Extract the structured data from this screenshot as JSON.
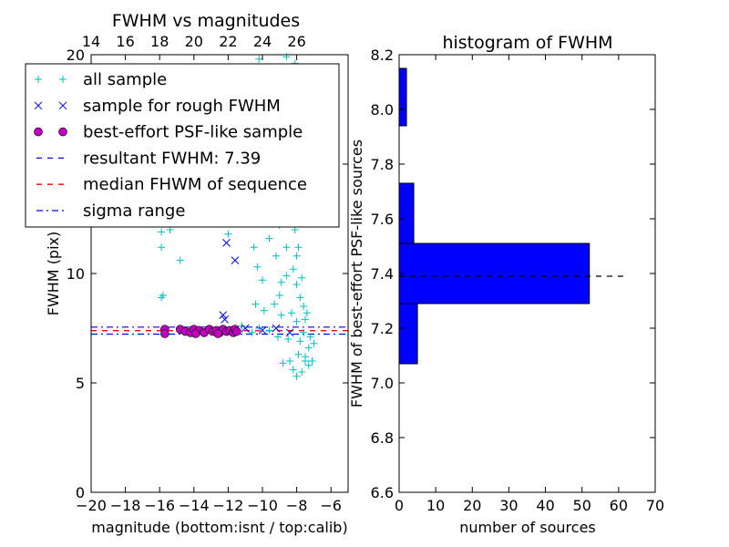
{
  "chart_data": [
    {
      "type": "scatter",
      "title": "FWHM vs magnitudes",
      "xlabel": "magnitude (bottom:isnt / top:calib)",
      "ylabel": "FWHM (pix)",
      "xlim": [
        -20,
        -5
      ],
      "ylim": [
        0,
        20
      ],
      "x_ticks": [
        -20,
        -18,
        -16,
        -14,
        -12,
        -10,
        -8,
        -6
      ],
      "x_tick_labels": [
        "−20",
        "−18",
        "−16",
        "−14",
        "−12",
        "−10",
        "−8",
        "−6"
      ],
      "y_ticks": [
        0,
        5,
        10,
        15,
        20
      ],
      "y_tick_labels": [
        "0",
        "5",
        "10",
        "15",
        "20"
      ],
      "top_axis": {
        "ticks": [
          14,
          16,
          18,
          20,
          22,
          24,
          26
        ],
        "tick_labels": [
          "14",
          "16",
          "18",
          "20",
          "22",
          "24",
          "26"
        ],
        "offset": 34
      },
      "grid": false,
      "legend_position": "top-left",
      "legend": [
        {
          "label": "all sample",
          "marker": "plus",
          "color": "#00bfbf"
        },
        {
          "label": "sample for rough FWHM",
          "marker": "x",
          "color": "#0000ff"
        },
        {
          "label": "best-effort PSF-like sample",
          "marker": "circle",
          "color": "#bf00bf"
        },
        {
          "label": "resultant FWHM: 7.39",
          "line": "dashed",
          "color": "#0000ff"
        },
        {
          "label": "median FHWM of sequence",
          "line": "dashed",
          "color": "#ff0000"
        },
        {
          "label": "sigma range",
          "line": "dashdot",
          "color": "#0000ff"
        }
      ],
      "series": [
        {
          "name": "all sample",
          "marker": "plus",
          "color": "#00bfbf",
          "points": [
            [
              -15.9,
              11.9
            ],
            [
              -15.9,
              11.2
            ],
            [
              -15.8,
              9.0
            ],
            [
              -15.9,
              8.9
            ],
            [
              -15.4,
              12.0
            ],
            [
              -14.8,
              10.6
            ],
            [
              -13.3,
              12.6
            ],
            [
              -12.0,
              11.8
            ],
            [
              -10.2,
              19.8
            ],
            [
              -9.8,
              18.5
            ],
            [
              -9.6,
              17.2
            ],
            [
              -8.6,
              19.9
            ],
            [
              -8.1,
              19.6
            ],
            [
              -9.2,
              14.0
            ],
            [
              -9.5,
              13.0
            ],
            [
              -8.9,
              15.5
            ],
            [
              -8.3,
              16.8
            ],
            [
              -10.5,
              11.2
            ],
            [
              -10.3,
              10.3
            ],
            [
              -10.0,
              9.7
            ],
            [
              -9.6,
              11.6
            ],
            [
              -9.2,
              10.8
            ],
            [
              -8.9,
              9.6
            ],
            [
              -8.6,
              11.2
            ],
            [
              -8.4,
              12.9
            ],
            [
              -8.2,
              10.2
            ],
            [
              -8.0,
              9.5
            ],
            [
              -7.8,
              8.9
            ],
            [
              -7.6,
              8.5
            ],
            [
              -7.5,
              7.9
            ],
            [
              -7.6,
              7.3
            ],
            [
              -7.8,
              6.9
            ],
            [
              -7.3,
              6.6
            ],
            [
              -7.5,
              6.2
            ],
            [
              -7.2,
              7.1
            ],
            [
              -7.0,
              6.8
            ],
            [
              -7.4,
              8.2
            ],
            [
              -7.9,
              6.3
            ],
            [
              -8.4,
              6.0
            ],
            [
              -8.2,
              5.6
            ],
            [
              -8.8,
              5.9
            ],
            [
              -9.1,
              7.1
            ],
            [
              -9.6,
              7.4
            ],
            [
              -10.2,
              7.5
            ],
            [
              -10.6,
              7.3
            ],
            [
              -11.2,
              7.6
            ],
            [
              -8.0,
              10.8
            ],
            [
              -8.4,
              14.0
            ],
            [
              -8.7,
              13.4
            ],
            [
              -9.0,
              12.2
            ],
            [
              -8.1,
              12.0
            ],
            [
              -7.9,
              11.2
            ],
            [
              -8.6,
              9.9
            ],
            [
              -9.0,
              9.0
            ],
            [
              -9.3,
              8.6
            ],
            [
              -7.7,
              9.8
            ],
            [
              -8.3,
              8.2
            ],
            [
              -8.9,
              8.1
            ],
            [
              -7.5,
              6.0
            ],
            [
              -7.7,
              5.5
            ],
            [
              -8.0,
              5.3
            ],
            [
              -11.6,
              13.8
            ],
            [
              -10.9,
              14.8
            ],
            [
              -10.0,
              16.0
            ],
            [
              -8.5,
              18.2
            ],
            [
              -8.0,
              15.0
            ],
            [
              -7.7,
              13.4
            ],
            [
              -9.4,
              15.2
            ],
            [
              -10.6,
              12.4
            ],
            [
              -9.9,
              8.3
            ],
            [
              -10.4,
              8.6
            ],
            [
              -8.0,
              7.8
            ],
            [
              -8.5,
              7.0
            ],
            [
              -7.1,
              6.0
            ],
            [
              -7.3,
              5.8
            ]
          ]
        },
        {
          "name": "sample for rough FWHM",
          "marker": "x",
          "color": "#0000ff",
          "points": [
            [
              -12.1,
              11.4
            ],
            [
              -11.6,
              10.6
            ],
            [
              -12.3,
              8.1
            ],
            [
              -12.2,
              7.9
            ],
            [
              -10.0,
              7.4
            ],
            [
              -9.2,
              7.5
            ],
            [
              -8.4,
              7.3
            ],
            [
              -11.0,
              7.5
            ]
          ]
        },
        {
          "name": "best-effort PSF-like sample",
          "marker": "circle",
          "color": "#bf00bf",
          "points": [
            [
              -15.7,
              7.45
            ],
            [
              -15.7,
              7.25
            ],
            [
              -14.8,
              7.45
            ],
            [
              -14.5,
              7.35
            ],
            [
              -14.2,
              7.3
            ],
            [
              -14.0,
              7.45
            ],
            [
              -13.7,
              7.4
            ],
            [
              -13.4,
              7.3
            ],
            [
              -13.1,
              7.45
            ],
            [
              -12.9,
              7.35
            ],
            [
              -12.7,
              7.4
            ],
            [
              -12.5,
              7.3
            ],
            [
              -12.3,
              7.45
            ],
            [
              -12.1,
              7.35
            ],
            [
              -11.9,
              7.4
            ],
            [
              -11.7,
              7.3
            ],
            [
              -11.6,
              7.45
            ],
            [
              -12.6,
              7.25
            ],
            [
              -13.9,
              7.25
            ],
            [
              -11.5,
              7.35
            ]
          ]
        }
      ],
      "hlines": [
        {
          "name": "resultant FWHM: 7.39",
          "y": 7.39,
          "color": "#0000ff",
          "style": "dashed"
        },
        {
          "name": "median FHWM of sequence",
          "y": 7.39,
          "color": "#ff0000",
          "style": "dashed"
        },
        {
          "name": "sigma range",
          "y": 7.55,
          "color": "#0000ff",
          "style": "dashdot"
        },
        {
          "name": "sigma range",
          "y": 7.23,
          "color": "#0000ff",
          "style": "dashdot"
        }
      ]
    },
    {
      "type": "bar",
      "orientation": "horizontal",
      "title": "histogram of FWHM",
      "xlabel": "number of sources",
      "ylabel": "FWHM of best-effort PSF-like sources",
      "xlim": [
        0,
        70
      ],
      "ylim": [
        6.6,
        8.2
      ],
      "x_ticks": [
        0,
        10,
        20,
        30,
        40,
        50,
        60,
        70
      ],
      "x_tick_labels": [
        "0",
        "10",
        "20",
        "30",
        "40",
        "50",
        "60",
        "70"
      ],
      "y_ticks": [
        6.6,
        6.8,
        7.0,
        7.2,
        7.4,
        7.6,
        7.8,
        8.0,
        8.2
      ],
      "y_tick_labels": [
        "6.6",
        "6.8",
        "7.0",
        "7.2",
        "7.4",
        "7.6",
        "7.8",
        "8.0",
        "8.2"
      ],
      "grid": false,
      "bars": [
        {
          "y0": 7.07,
          "y1": 7.29,
          "count": 5
        },
        {
          "y0": 7.29,
          "y1": 7.51,
          "count": 52
        },
        {
          "y0": 7.51,
          "y1": 7.73,
          "count": 4
        },
        {
          "y0": 7.94,
          "y1": 8.15,
          "count": 2
        }
      ],
      "bar_color": "#0000ff",
      "hline": {
        "y": 7.39,
        "x0": 0,
        "x1": 62,
        "color": "#000000",
        "style": "dashed"
      }
    }
  ]
}
